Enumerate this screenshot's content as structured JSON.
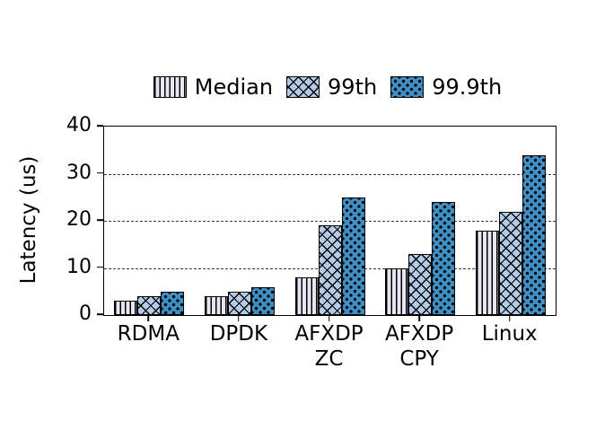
{
  "chart_data": {
    "type": "bar",
    "title": "",
    "xlabel": "",
    "ylabel": "Latency (us)",
    "ylim": [
      0,
      40
    ],
    "yticks": [
      0,
      10,
      20,
      30,
      40
    ],
    "grid": "horizontal-dashed",
    "legend_position": "top-center",
    "bar_edge_color": "#000000",
    "categories": [
      "RDMA",
      "DPDK",
      "AFXDP\nZC",
      "AFXDP\nCPY",
      "Linux"
    ],
    "series": [
      {
        "name": "Median",
        "values": [
          3,
          4,
          8,
          10,
          18
        ],
        "fill": "#e7e7f4",
        "hatch": "vertical"
      },
      {
        "name": "99th",
        "values": [
          4,
          5,
          19,
          13,
          22
        ],
        "fill": "#b3cbe6",
        "hatch": "cross"
      },
      {
        "name": "99.9th",
        "values": [
          5,
          6,
          25,
          24,
          34
        ],
        "fill": "#3f8fc5",
        "hatch": "dots"
      }
    ]
  }
}
